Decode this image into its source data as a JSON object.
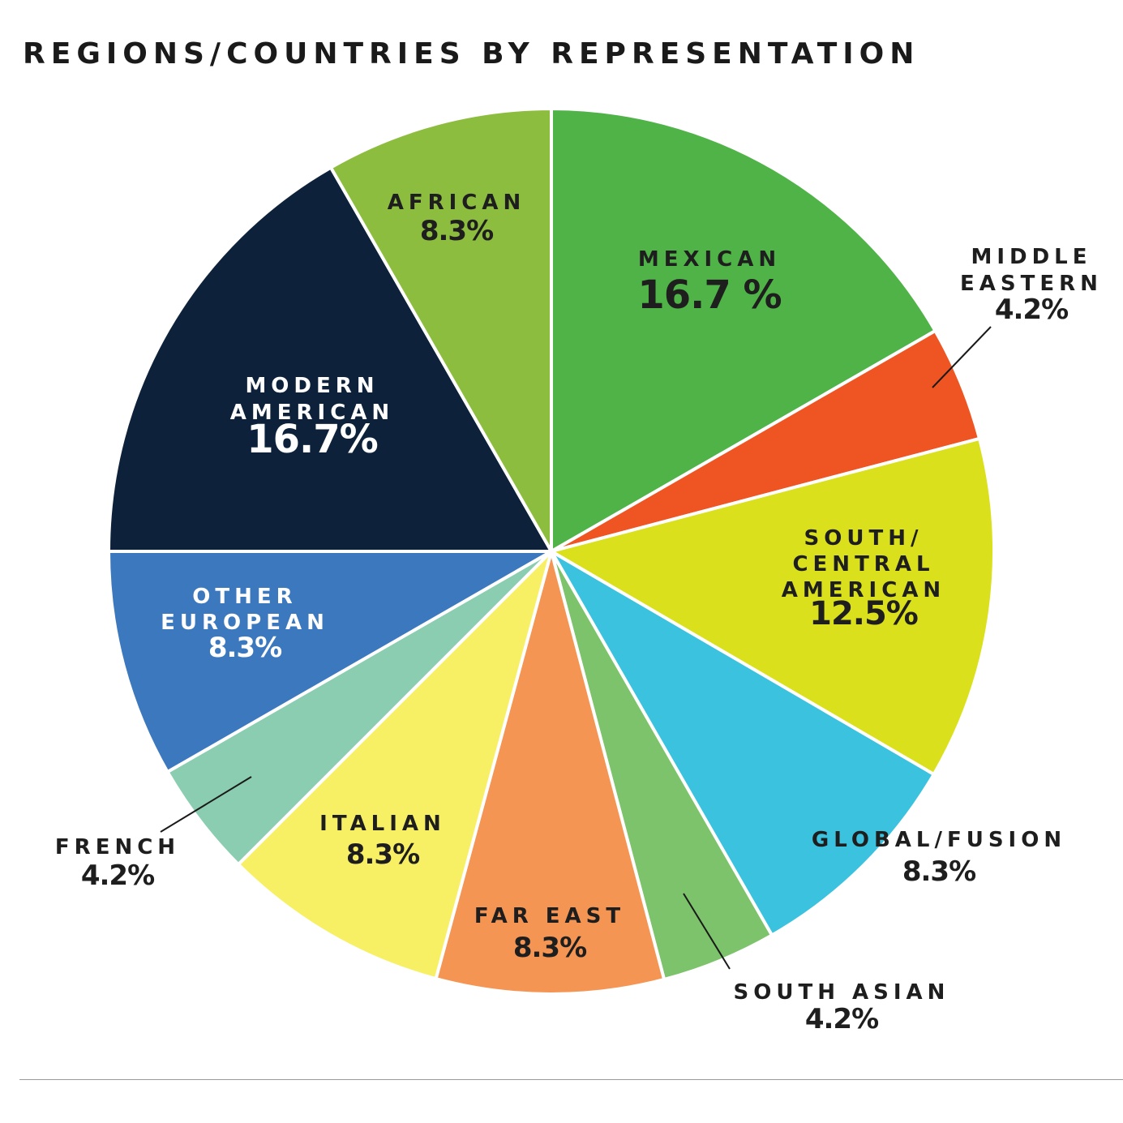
{
  "title": "REGIONS/COUNTRIES BY REPRESENTATION",
  "chart_data": {
    "type": "pie",
    "title": "REGIONS/COUNTRIES BY REPRESENTATION",
    "slices": [
      {
        "label": [
          "MEXICAN"
        ],
        "display": "16.7 %",
        "value": 16.7,
        "color": "#50b348",
        "text_color": "#1e1e1e"
      },
      {
        "label": [
          "MIDDLE",
          "EASTERN"
        ],
        "display": "4.2%",
        "value": 4.2,
        "color": "#ef5523",
        "text_color": "#1e1e1e"
      },
      {
        "label": [
          "SOUTH/",
          "CENTRAL",
          "AMERICAN"
        ],
        "display": "12.5%",
        "value": 12.5,
        "color": "#dbe01c",
        "text_color": "#1e1e1e"
      },
      {
        "label": [
          "GLOBAL/FUSION"
        ],
        "display": "8.3%",
        "value": 8.3,
        "color": "#3bc2df",
        "text_color": "#1e1e1e"
      },
      {
        "label": [
          "SOUTH ASIAN"
        ],
        "display": "4.2%",
        "value": 4.2,
        "color": "#7cc36b",
        "text_color": "#1e1e1e"
      },
      {
        "label": [
          "FAR EAST"
        ],
        "display": "8.3%",
        "value": 8.3,
        "color": "#f59553",
        "text_color": "#1e1e1e"
      },
      {
        "label": [
          "ITALIAN"
        ],
        "display": "8.3%",
        "value": 8.3,
        "color": "#f8f064",
        "text_color": "#1e1e1e"
      },
      {
        "label": [
          "FRENCH"
        ],
        "display": "4.2%",
        "value": 4.2,
        "color": "#8acdb0",
        "text_color": "#1e1e1e"
      },
      {
        "label": [
          "OTHER",
          "EUROPEAN"
        ],
        "display": "8.3%",
        "value": 8.3,
        "color": "#3c78be",
        "text_color": "#ffffff"
      },
      {
        "label": [
          "MODERN",
          "AMERICAN"
        ],
        "display": "16.7%",
        "value": 16.7,
        "color": "#0d223a",
        "text_color": "#ffffff"
      },
      {
        "label": [
          "AFRICAN"
        ],
        "display": "8.3%",
        "value": 8.3,
        "color": "#8dbd3f",
        "text_color": "#1e1e1e"
      }
    ]
  }
}
